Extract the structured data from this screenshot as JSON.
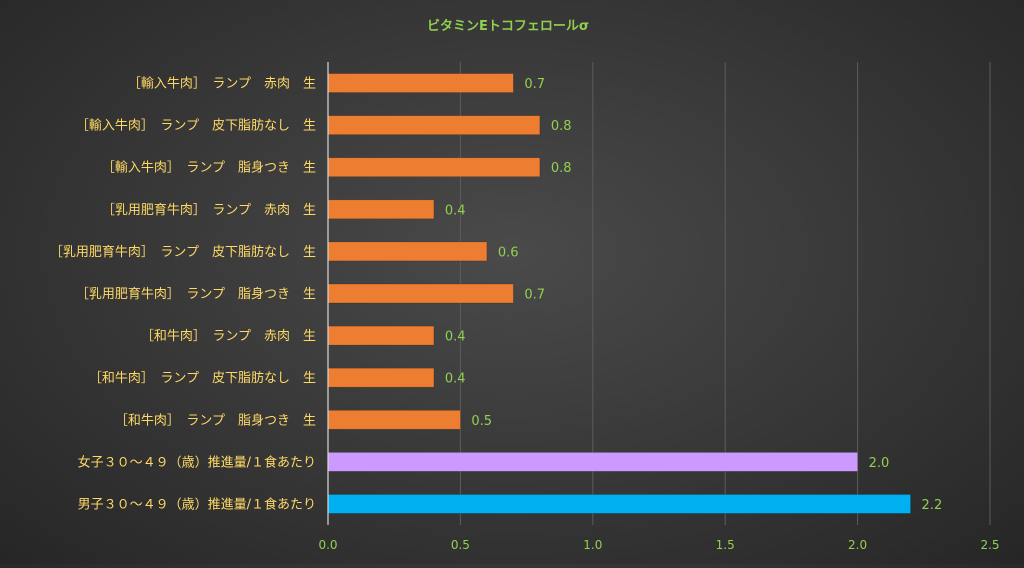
{
  "chart_data": {
    "type": "bar",
    "orientation": "horizontal",
    "title": "ビタミンEトコフェロールσ",
    "categories": [
      "［輸入牛肉］　ランプ　赤肉　生",
      "［輸入牛肉］　ランプ　皮下脂肪なし　生",
      "［輸入牛肉］　ランプ　脂身つき　生",
      "［乳用肥育牛肉］　ランプ　赤肉　生",
      "［乳用肥育牛肉］　ランプ　皮下脂肪なし　生",
      "［乳用肥育牛肉］　ランプ　脂身つき　生",
      "［和牛肉］　ランプ　赤肉　生",
      "［和牛肉］　ランプ　皮下脂肪なし　生",
      "［和牛肉］　ランプ　脂身つき　生",
      "女子３０～４９（歳）推進量/１食あたり",
      "男子３０～４９（歳）推進量/１食あたり"
    ],
    "values": [
      0.7,
      0.8,
      0.8,
      0.4,
      0.6,
      0.7,
      0.4,
      0.4,
      0.5,
      2.0,
      2.2
    ],
    "data_labels": [
      "0.7",
      "0.8",
      "0.8",
      "0.4",
      "0.6",
      "0.7",
      "0.4",
      "0.4",
      "0.5",
      "2.0",
      "2.2"
    ],
    "bar_colors": [
      "#ed7d31",
      "#ed7d31",
      "#ed7d31",
      "#ed7d31",
      "#ed7d31",
      "#ed7d31",
      "#ed7d31",
      "#ed7d31",
      "#ed7d31",
      "#cc99ff",
      "#00b0f0"
    ],
    "xlim": [
      0,
      2.5
    ],
    "x_ticks": [
      "0.0",
      "0.5",
      "1.0",
      "1.5",
      "2.0",
      "2.5"
    ],
    "xlabel": "",
    "ylabel": "",
    "grid": "vertical",
    "legend": "none",
    "colors": {
      "title": "#92d050",
      "category_label": "#ffd966",
      "tick_label": "#92d050",
      "data_label": "#92d050",
      "grid": "#5c5c5c",
      "axis": "#d9d9d9"
    }
  }
}
